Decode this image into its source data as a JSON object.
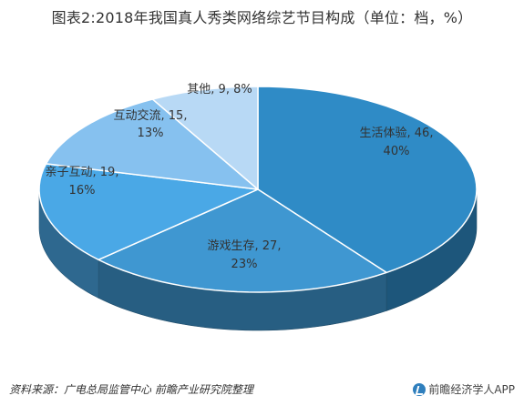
{
  "title": "图表2:2018年我国真人秀类网络综艺节目构成（单位：档，%）",
  "chart_data": {
    "type": "pie",
    "style": "3d",
    "slices": [
      {
        "name": "生活体验",
        "count": 46,
        "percent": 40,
        "label_line1": "生活体验, 46,",
        "label_line2": "40%",
        "color": "#2f8bc6"
      },
      {
        "name": "游戏生存",
        "count": 27,
        "percent": 23,
        "label_line1": "游戏生存, 27,",
        "label_line2": "23%",
        "color": "#3f97d1"
      },
      {
        "name": "亲子互动",
        "count": 19,
        "percent": 16,
        "label_line1": "亲子互动, 19,",
        "label_line2": "16%",
        "color": "#4aa8e6"
      },
      {
        "name": "互动交流",
        "count": 15,
        "percent": 13,
        "label_line1": "互动交流, 15,",
        "label_line2": "13%",
        "color": "#86c1ef"
      },
      {
        "name": "其他",
        "count": 9,
        "percent": 8,
        "label_line1": "其他, 9, 8%",
        "label_line2": "",
        "color": "#b8d9f5"
      }
    ],
    "start_at": "top",
    "direction": "clockwise"
  },
  "footer": {
    "source": "资料来源：广电总局监管中心 前瞻产业研究院整理",
    "brand": "前瞻经济学人APP"
  },
  "colors": {
    "side_dark": "#1f5a84",
    "side_mid": "#2d77a8",
    "edge": "#ffffff"
  }
}
